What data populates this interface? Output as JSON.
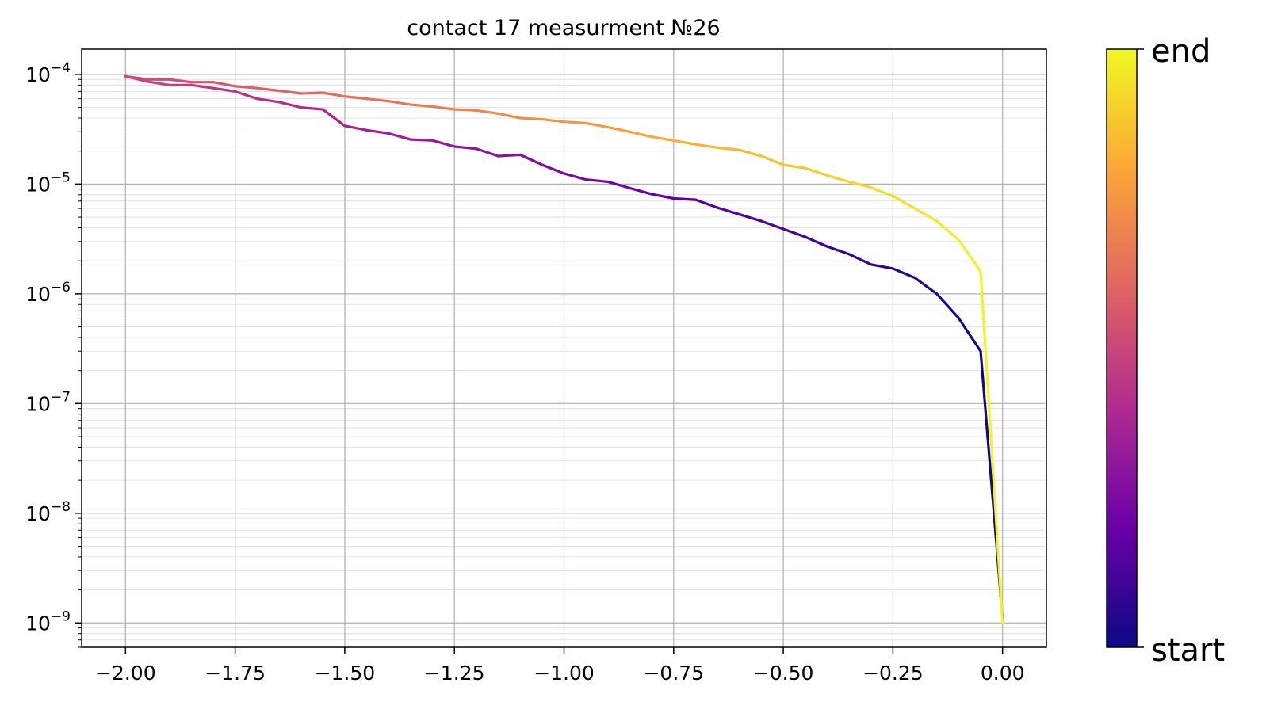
{
  "chart_data": {
    "type": "line",
    "title": "contact 17 measurment №26",
    "xlabel": "",
    "ylabel": "",
    "xlim": [
      -2.1,
      0.1
    ],
    "ylim": [
      6e-10,
      0.00017
    ],
    "yscale": "log",
    "grid": true,
    "x_ticks": [
      -2.0,
      -1.75,
      -1.5,
      -1.25,
      -1.0,
      -0.75,
      -0.5,
      -0.25,
      0.0
    ],
    "x_tick_labels": [
      "−2.00",
      "−1.75",
      "−1.50",
      "−1.25",
      "−1.00",
      "−0.75",
      "−0.50",
      "−0.25",
      "0.00"
    ],
    "y_ticks": [
      {
        "base": "10",
        "exp": "−4",
        "value": 0.0001
      },
      {
        "base": "10",
        "exp": "−5",
        "value": 1e-05
      },
      {
        "base": "10",
        "exp": "−6",
        "value": 1e-06
      },
      {
        "base": "10",
        "exp": "−7",
        "value": 1e-07
      },
      {
        "base": "10",
        "exp": "−8",
        "value": 1e-08
      },
      {
        "base": "10",
        "exp": "−9",
        "value": 1e-09
      }
    ],
    "colormap": "plasma",
    "colormap_stops": [
      "#0d0887",
      "#6a00a8",
      "#b12a90",
      "#e16462",
      "#fca636",
      "#f0f921"
    ],
    "colorbar": {
      "top_label": "end",
      "bottom_label": "start"
    },
    "x": [
      0.0,
      -0.05,
      -0.1,
      -0.15,
      -0.2,
      -0.25,
      -0.3,
      -0.35,
      -0.4,
      -0.45,
      -0.5,
      -0.55,
      -0.6,
      -0.65,
      -0.7,
      -0.75,
      -0.8,
      -0.85,
      -0.9,
      -0.95,
      -1.0,
      -1.05,
      -1.1,
      -1.15,
      -1.2,
      -1.25,
      -1.3,
      -1.35,
      -1.4,
      -1.45,
      -1.5,
      -1.55,
      -1.6,
      -1.65,
      -1.7,
      -1.75,
      -1.8,
      -1.85,
      -1.9,
      -1.95,
      -2.0,
      -1.95,
      -1.9,
      -1.85,
      -1.8,
      -1.75,
      -1.7,
      -1.65,
      -1.6,
      -1.55,
      -1.5,
      -1.45,
      -1.4,
      -1.35,
      -1.3,
      -1.25,
      -1.2,
      -1.15,
      -1.1,
      -1.05,
      -1.0,
      -0.95,
      -0.9,
      -0.85,
      -0.8,
      -0.75,
      -0.7,
      -0.65,
      -0.6,
      -0.55,
      -0.5,
      -0.45,
      -0.4,
      -0.35,
      -0.3,
      -0.25,
      -0.2,
      -0.15,
      -0.1,
      -0.05,
      0.0
    ],
    "y": [
      1.1e-09,
      3e-07,
      6e-07,
      1e-06,
      1.4e-06,
      1.7e-06,
      1.85e-06,
      2.3e-06,
      2.7e-06,
      3.3e-06,
      3.9e-06,
      4.6e-06,
      5.3e-06,
      6.1e-06,
      7.2e-06,
      7.4e-06,
      8.1e-06,
      9.2e-06,
      1.05e-05,
      1.1e-05,
      1.25e-05,
      1.5e-05,
      1.85e-05,
      1.8e-05,
      2.1e-05,
      2.2e-05,
      2.5e-05,
      2.55e-05,
      2.9e-05,
      3.1e-05,
      3.4e-05,
      4.8e-05,
      5e-05,
      5.6e-05,
      6e-05,
      7e-05,
      7.5e-05,
      8e-05,
      8e-05,
      8.6e-05,
      9.6e-05,
      9e-05,
      9e-05,
      8.5e-05,
      8.5e-05,
      7.8e-05,
      7.5e-05,
      7.1e-05,
      6.7e-05,
      6.8e-05,
      6.3e-05,
      6e-05,
      5.7e-05,
      5.3e-05,
      5.1e-05,
      4.8e-05,
      4.7e-05,
      4.4e-05,
      4e-05,
      3.9e-05,
      3.7e-05,
      3.6e-05,
      3.3e-05,
      3e-05,
      2.7e-05,
      2.5e-05,
      2.3e-05,
      2.15e-05,
      2.05e-05,
      1.8e-05,
      1.5e-05,
      1.4e-05,
      1.2e-05,
      1.05e-05,
      9.3e-06,
      7.8e-06,
      6e-06,
      4.6e-06,
      3.1e-06,
      1.6e-06,
      1e-09
    ]
  }
}
